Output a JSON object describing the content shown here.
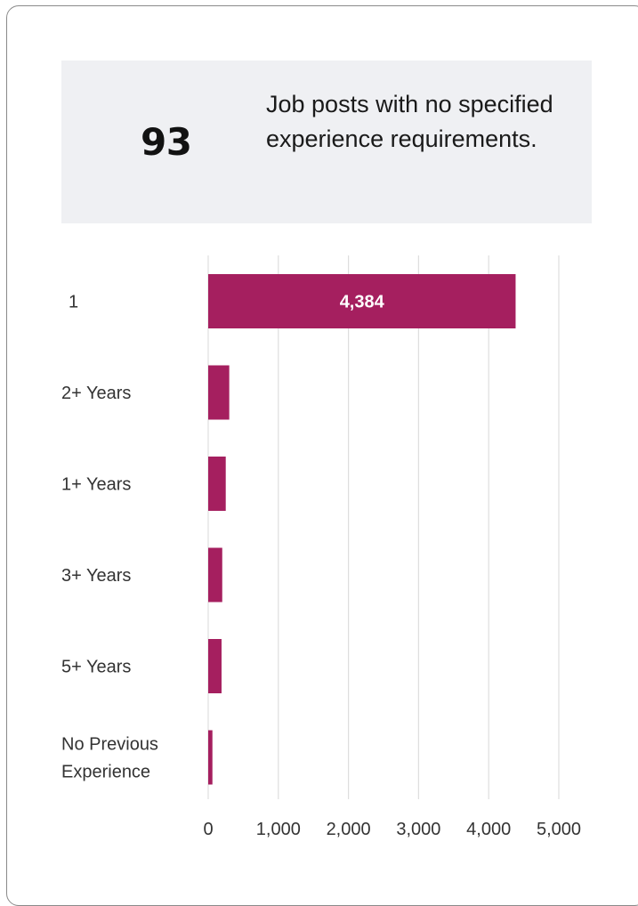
{
  "stat": {
    "number": "93",
    "description": "Job posts with no specified experience requirements."
  },
  "colors": {
    "bar": "#a51f5f",
    "grid": "#dedede",
    "stat_background": "#eff0f3"
  },
  "chart_data": {
    "type": "bar",
    "orientation": "horizontal",
    "categories": [
      "1",
      "2+ Years",
      "1+ Years",
      "3+ Years",
      "5+ Years",
      "No Previous Experience"
    ],
    "values": [
      4384,
      300,
      250,
      200,
      190,
      60
    ],
    "data_labels": [
      "4,384",
      "",
      "",
      "",
      "",
      ""
    ],
    "xlim": [
      0,
      5000
    ],
    "xticks": [
      0,
      1000,
      2000,
      3000,
      4000,
      5000
    ],
    "xtick_labels": [
      "0",
      "1,000",
      "2,000",
      "3,000",
      "4,000",
      "5,000"
    ],
    "grid": true,
    "title": "",
    "xlabel": "",
    "ylabel": ""
  }
}
